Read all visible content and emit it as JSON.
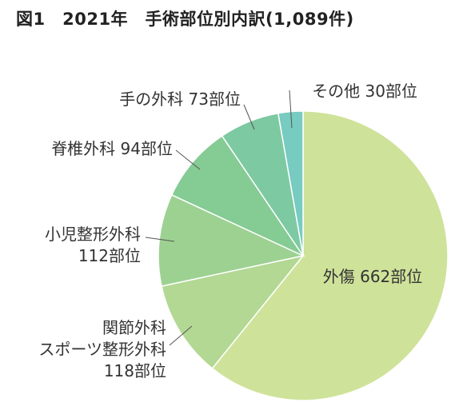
{
  "chart_data": {
    "type": "pie",
    "title": "図1　2021年　手術部位別内訳(1,089件)",
    "total": 1089,
    "start": "12 o'clock",
    "direction": "clockwise",
    "slices": [
      {
        "name": "外傷",
        "value": 662,
        "label_lines": [
          "外傷 662部位"
        ],
        "color": "#cfe29a"
      },
      {
        "name": "関節外科 スポーツ整形外科",
        "value": 118,
        "label_lines": [
          "関節外科",
          "スポーツ整形外科",
          "118部位"
        ],
        "color": "#b2d893"
      },
      {
        "name": "小児整形外科",
        "value": 112,
        "label_lines": [
          "小児整形外科",
          "112部位"
        ],
        "color": "#9dd192"
      },
      {
        "name": "脊椎外科",
        "value": 94,
        "label_lines": [
          "脊椎外科 94部位"
        ],
        "color": "#85cb94"
      },
      {
        "name": "手の外科",
        "value": 73,
        "label_lines": [
          "手の外科 73部位"
        ],
        "color": "#7dc9a2"
      },
      {
        "name": "その他",
        "value": 30,
        "label_lines": [
          "その他 30部位"
        ],
        "color": "#77cbc1"
      }
    ]
  }
}
